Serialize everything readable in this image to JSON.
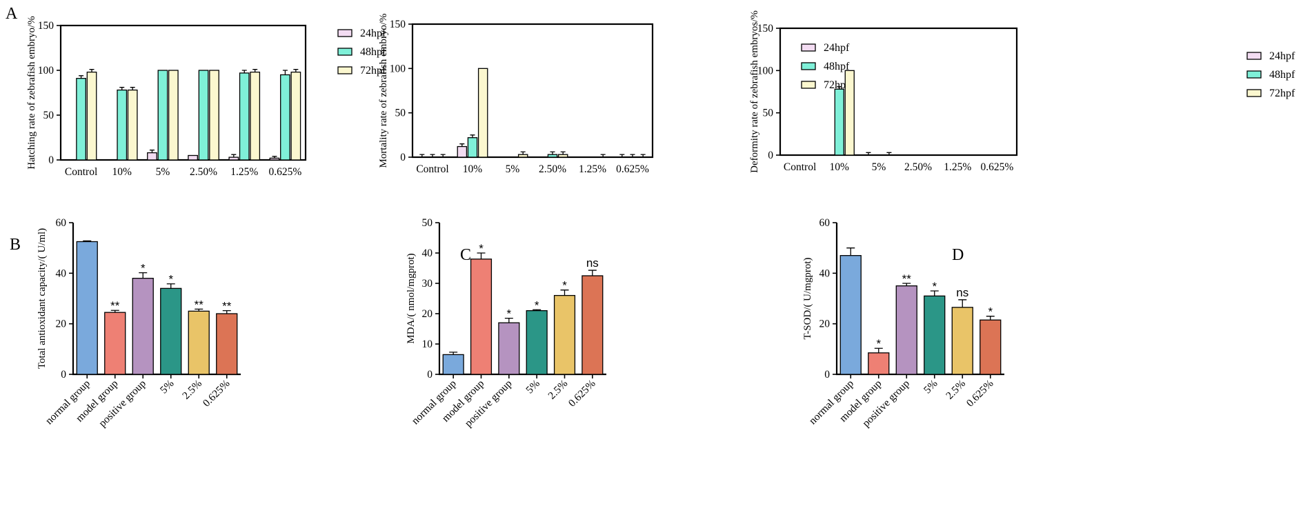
{
  "panel_labels": {
    "A": "A",
    "B": "B",
    "C": "C",
    "D": "D"
  },
  "chart_data": [
    {
      "id": "hatching",
      "type": "bar",
      "panel": "A",
      "title": "",
      "ylabel": "Hatching rate of zebrafish embryo/%",
      "ylim": [
        0,
        150
      ],
      "yticks": [
        0,
        50,
        100,
        150
      ],
      "categories": [
        "Control",
        "10%",
        "5%",
        "2.50%",
        "1.25%",
        "0.625%"
      ],
      "series": [
        {
          "name": "24hpf",
          "color": "#f3dcf2",
          "values": [
            0,
            0,
            8,
            5,
            3,
            2
          ],
          "errors": [
            0,
            0,
            3,
            0,
            3,
            2
          ]
        },
        {
          "name": "48hpf",
          "color": "#7ff0d8",
          "values": [
            91,
            78,
            100,
            100,
            97,
            95
          ],
          "errors": [
            3,
            3,
            0,
            0,
            3,
            5
          ]
        },
        {
          "name": "72hpf",
          "color": "#fbf7cf",
          "values": [
            98,
            78,
            100,
            100,
            98,
            98
          ],
          "errors": [
            3,
            3,
            0,
            0,
            3,
            3
          ]
        }
      ]
    },
    {
      "id": "mortality",
      "type": "bar",
      "panel": "A",
      "title": "",
      "ylabel": "Mortality rate of zebrafish embryo/%",
      "ylim": [
        0,
        150
      ],
      "yticks": [
        0,
        50,
        100,
        150
      ],
      "categories": [
        "Control",
        "10%",
        "5%",
        "2.50%",
        "1.25%",
        "0.625%"
      ],
      "series": [
        {
          "name": "24hpf",
          "color": "#f3dcf2",
          "values": [
            0,
            12,
            0,
            0,
            0,
            0
          ],
          "errors": [
            3,
            3,
            0,
            0,
            0,
            3
          ]
        },
        {
          "name": "48hpf",
          "color": "#7ff0d8",
          "values": [
            0,
            22,
            0,
            3,
            0,
            0
          ],
          "errors": [
            3,
            3,
            0,
            3,
            0,
            3
          ]
        },
        {
          "name": "72hpf",
          "color": "#fbf7cf",
          "values": [
            0,
            100,
            3,
            3,
            0,
            0
          ],
          "errors": [
            3,
            0,
            3,
            3,
            3,
            3
          ]
        }
      ]
    },
    {
      "id": "deformity",
      "type": "bar",
      "panel": "A",
      "title": "",
      "ylabel": "Deformity rate of zebrafish embryos/%",
      "ylim": [
        0,
        150
      ],
      "yticks": [
        0,
        50,
        100,
        150
      ],
      "categories": [
        "Control",
        "10%",
        "5%",
        "2.50%",
        "1.25%",
        "0.625%"
      ],
      "series": [
        {
          "name": "24hpf",
          "color": "#f3dcf2",
          "values": [
            0,
            0,
            0,
            0,
            0,
            0
          ],
          "errors": [
            0,
            0,
            3,
            0,
            0,
            0
          ]
        },
        {
          "name": "48hpf",
          "color": "#7ff0d8",
          "values": [
            0,
            78,
            0,
            0,
            0,
            0
          ],
          "errors": [
            0,
            3,
            0,
            0,
            0,
            0
          ]
        },
        {
          "name": "72hpf",
          "color": "#fbf7cf",
          "values": [
            0,
            100,
            0,
            0,
            0,
            0
          ],
          "errors": [
            0,
            0,
            3,
            0,
            0,
            0
          ]
        }
      ]
    },
    {
      "id": "tac",
      "type": "bar",
      "panel": "B",
      "title": "",
      "ylabel": "Total antioxidant capacity/( U/ml)",
      "ylim": [
        0,
        60
      ],
      "yticks": [
        0,
        20,
        40,
        60
      ],
      "categories": [
        "normal group",
        "model group",
        "positive group",
        "5%",
        "2.5%",
        "0.625%"
      ],
      "values": [
        52.5,
        24.5,
        38,
        34,
        25,
        24
      ],
      "errors": [
        0.3,
        0.8,
        2.2,
        1.8,
        0.8,
        1.2
      ],
      "colors": [
        "#7aa9dc",
        "#ee8074",
        "#b593c0",
        "#2b9687",
        "#e9c468",
        "#dc7455"
      ],
      "annotations": [
        "",
        "**",
        "*",
        "*",
        "**",
        "**"
      ]
    },
    {
      "id": "mda",
      "type": "bar",
      "panel": "C",
      "title": "",
      "ylabel": "MDA/( nmol/mgprot)",
      "ylim": [
        0,
        50
      ],
      "yticks": [
        0,
        10,
        20,
        30,
        40,
        50
      ],
      "categories": [
        "normal group",
        "model group",
        "positive group",
        "5%",
        "2.5%",
        "0.625%"
      ],
      "values": [
        6.5,
        38,
        17,
        21,
        26,
        32.5
      ],
      "errors": [
        0.8,
        2,
        1.5,
        0.3,
        1.8,
        1.8
      ],
      "colors": [
        "#7aa9dc",
        "#ee8074",
        "#b593c0",
        "#2b9687",
        "#e9c468",
        "#dc7455"
      ],
      "annotations": [
        "",
        "*",
        "*",
        "*",
        "*",
        "ns"
      ]
    },
    {
      "id": "tsod",
      "type": "bar",
      "panel": "D",
      "title": "",
      "ylabel": "T-SOD/( U/mgprot)",
      "ylim": [
        0,
        60
      ],
      "yticks": [
        0,
        20,
        40,
        60
      ],
      "categories": [
        "normal group",
        "model group",
        "positive group",
        "5%",
        "2.5%",
        "0.625%"
      ],
      "values": [
        47,
        8.5,
        35,
        31,
        26.5,
        21.5
      ],
      "errors": [
        3,
        1.8,
        1,
        2,
        3,
        1.5
      ],
      "colors": [
        "#7aa9dc",
        "#ee8074",
        "#b593c0",
        "#2b9687",
        "#e9c468",
        "#dc7455"
      ],
      "annotations": [
        "",
        "*",
        "**",
        "*",
        "ns",
        "*"
      ]
    }
  ]
}
